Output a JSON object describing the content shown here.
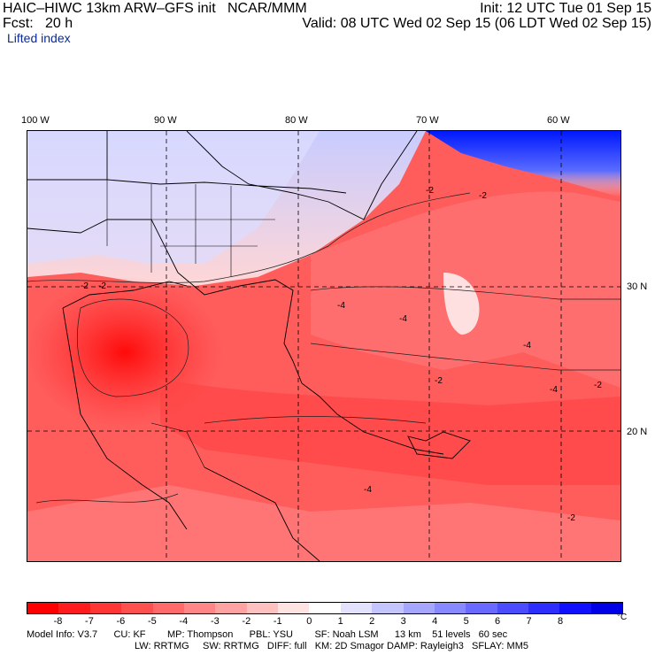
{
  "header": {
    "line1_left": "HAIC–HIWC 13km ARW–GFS init   NCAR/MMM",
    "line1_right": "Init: 12 UTC Tue 01 Sep 15",
    "line2_left": "Fcst:   20 h",
    "line2_right": "Valid: 08 UTC Wed 02 Sep 15 (06 LDT Wed 02 Sep 15)",
    "field_name": "Lifted index"
  },
  "map": {
    "lon_labels": [
      "100 W",
      "90 W",
      "80 W",
      "70 W",
      "60 W"
    ],
    "lat_labels": [
      "30 N",
      "20 N"
    ],
    "contour_labels": [
      "-2",
      "-2",
      "-2",
      "-2",
      "-2",
      "-4",
      "-4",
      "-4",
      "-4",
      "-4",
      "-2",
      "-2"
    ],
    "colors": {
      "warm": "#ff2a2a",
      "cool": "#3050ff",
      "neutral": "#ffffff"
    }
  },
  "colorbar": {
    "ticks": [
      "-8",
      "-7",
      "-6",
      "-5",
      "-4",
      "-3",
      "-2",
      "-1",
      "0",
      "1",
      "2",
      "3",
      "4",
      "5",
      "6",
      "7",
      "8"
    ],
    "unit": "°C",
    "colors": [
      "#ff0000",
      "#ff1c1c",
      "#ff3636",
      "#ff5050",
      "#ff6a6a",
      "#ff8686",
      "#ffa2a2",
      "#ffc0c0",
      "#ffe2e2",
      "#ffffff",
      "#e2e2ff",
      "#c4c4ff",
      "#a6a6ff",
      "#8888ff",
      "#6a6aff",
      "#4c4cff",
      "#2e2eff",
      "#1010ff",
      "#0000e8"
    ]
  },
  "model_info": {
    "line1": "Model Info: V3.7      CU: KF        MP: Thompson      PBL: YSU        SF: Noah LSM      13 km    51 levels   60 sec",
    "line2": "LW: RRTMG     SW: RRTMG   DIFF: full   KM: 2D Smagor DAMP: Rayleigh3   SFLAY: MM5"
  }
}
